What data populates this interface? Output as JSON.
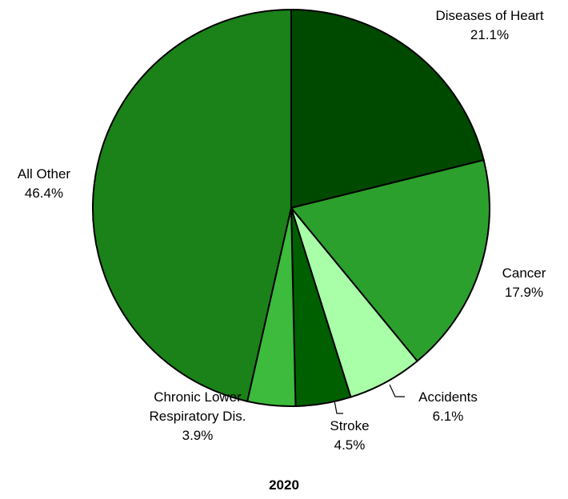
{
  "chart_data": {
    "type": "pie",
    "title": "2020",
    "categories": [
      "Diseases of Heart",
      "Cancer",
      "Accidents",
      "Stroke",
      "Chronic Lower Respiratory Dis.",
      "All Other"
    ],
    "values": [
      21.1,
      17.9,
      6.1,
      4.5,
      3.9,
      46.4
    ],
    "value_labels": [
      "21.1%",
      "17.9%",
      "6.1%",
      "4.5%",
      "3.9%",
      "46.4%"
    ],
    "colors": [
      "#004a00",
      "#2ca02c",
      "#a8ffa8",
      "#006000",
      "#3dbb3d",
      "#1a8219"
    ]
  }
}
